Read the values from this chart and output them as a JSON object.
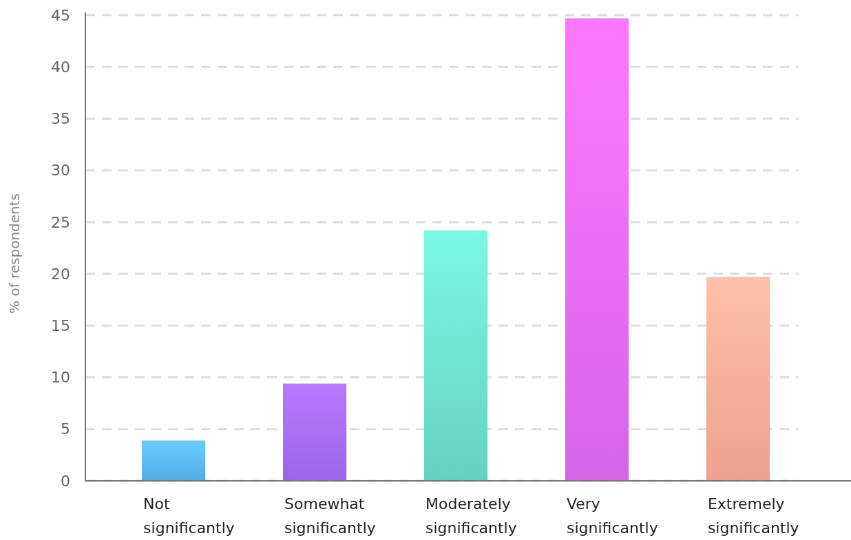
{
  "chart_data": {
    "type": "bar",
    "ylabel": "% of respondents",
    "categories": [
      "Not significantly",
      "Somewhat significantly",
      "Moderately significantly",
      "Very significantly",
      "Extremely significantly"
    ],
    "values": [
      3.9,
      9.4,
      24.2,
      44.7,
      19.7
    ],
    "colors": [
      "#5cb8f5",
      "#a66cf9",
      "#6ee0cc",
      "#e46cf9",
      "#ffac9a"
    ],
    "ylim": [
      0,
      45
    ],
    "yticks": [
      0,
      5,
      10,
      15,
      20,
      25,
      30,
      35,
      40,
      45
    ],
    "grid": "y"
  }
}
